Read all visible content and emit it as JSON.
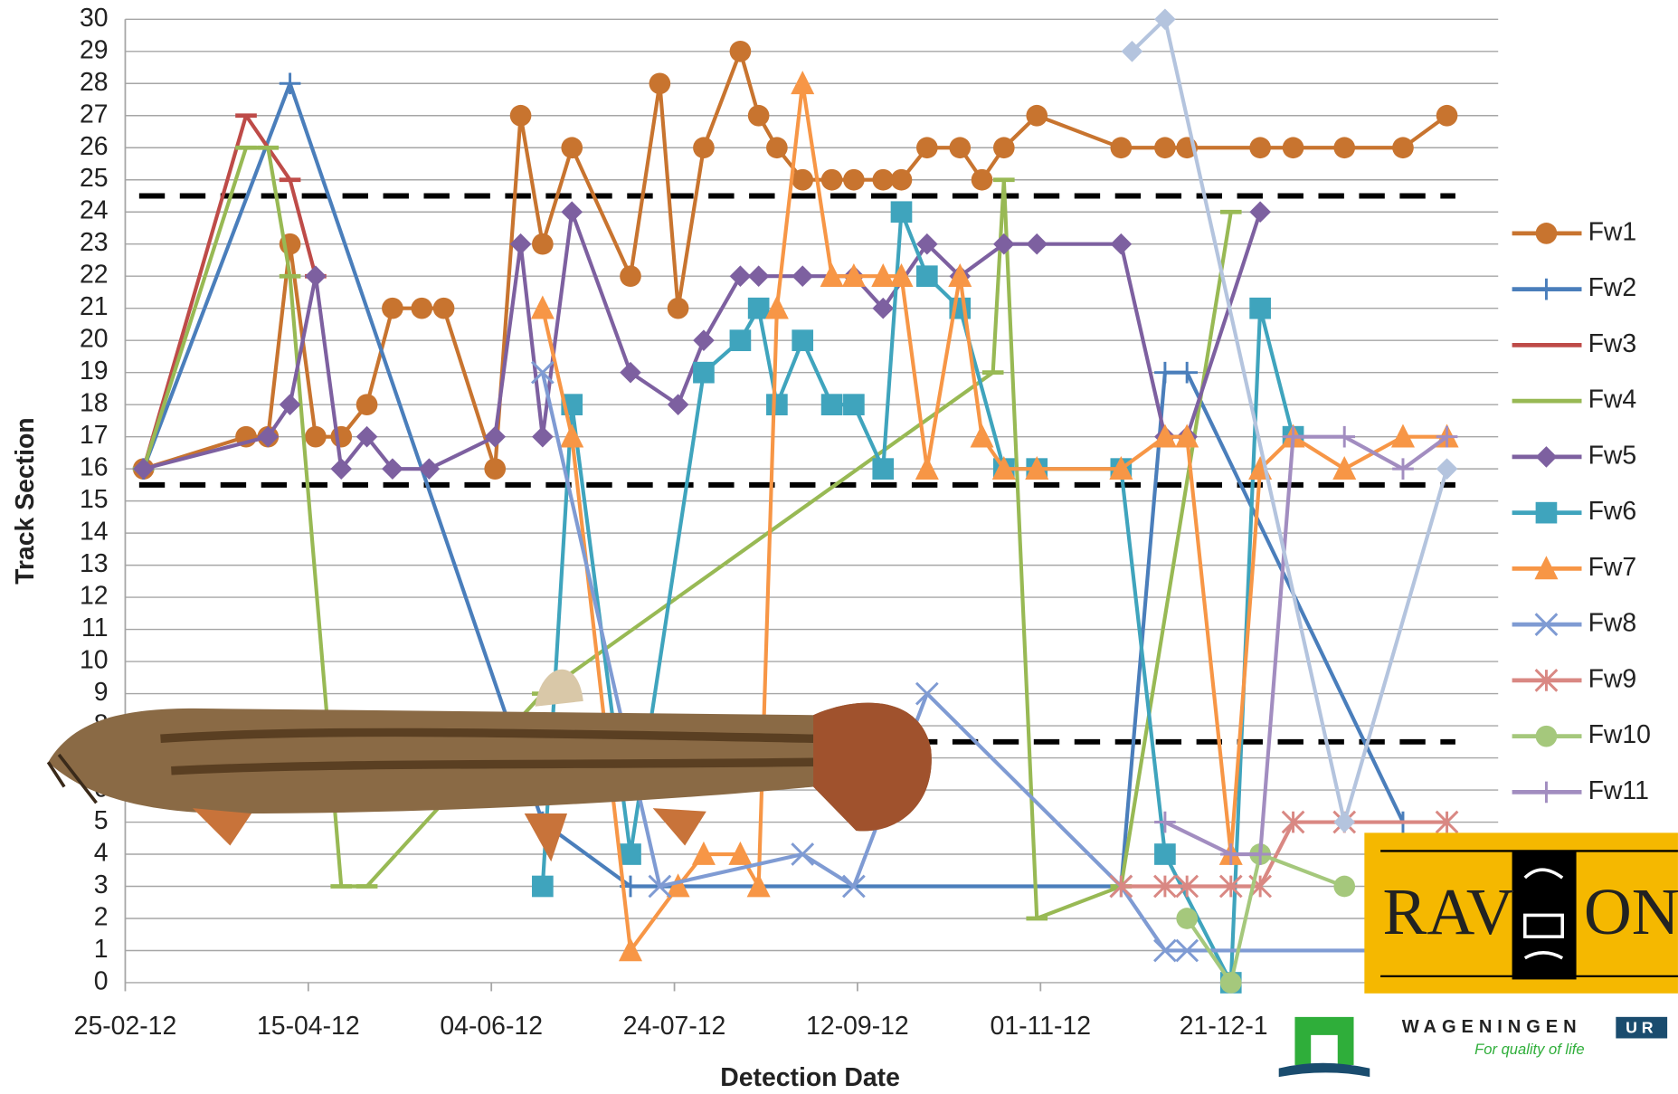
{
  "chart_data": {
    "type": "line",
    "x_label": "Detection Date",
    "y_label": "Track Section",
    "xlim": [
      "2012-02-25",
      "2013-03-06"
    ],
    "ylim": [
      0,
      30
    ],
    "xticks": [
      {
        "value": "2012-02-25",
        "label": "25-02-12"
      },
      {
        "value": "2012-04-15",
        "label": "15-04-12"
      },
      {
        "value": "2012-06-04",
        "label": "04-06-12"
      },
      {
        "value": "2012-07-24",
        "label": "24-07-12"
      },
      {
        "value": "2012-09-12",
        "label": "12-09-12"
      },
      {
        "value": "2012-11-01",
        "label": "01-11-12"
      },
      {
        "value": "2012-12-21",
        "label": "21-12-1"
      }
    ],
    "yticks": [
      0,
      1,
      2,
      3,
      4,
      5,
      6,
      7,
      8,
      9,
      10,
      11,
      12,
      13,
      14,
      15,
      16,
      17,
      18,
      19,
      20,
      21,
      22,
      23,
      24,
      25,
      26,
      27,
      28,
      29,
      30
    ],
    "grid": true,
    "reference_lines": [
      24.5,
      15.5,
      7.5
    ],
    "legend": "right",
    "series": [
      {
        "name": "Fw1",
        "color": "#c8742f",
        "marker": "circle",
        "x": [
          "2012-03-01",
          "2012-03-29",
          "2012-04-04",
          "2012-04-10",
          "2012-04-17",
          "2012-04-24",
          "2012-05-01",
          "2012-05-08",
          "2012-05-16",
          "2012-05-22",
          "2012-06-05",
          "2012-06-12",
          "2012-06-18",
          "2012-06-26",
          "2012-07-12",
          "2012-07-20",
          "2012-07-25",
          "2012-08-01",
          "2012-08-11",
          "2012-08-16",
          "2012-08-21",
          "2012-08-28",
          "2012-09-05",
          "2012-09-11",
          "2012-09-19",
          "2012-09-24",
          "2012-10-01",
          "2012-10-10",
          "2012-10-16",
          "2012-10-22",
          "2012-10-31",
          "2012-11-23",
          "2012-12-05",
          "2012-12-11",
          "2012-12-31",
          "2013-01-09",
          "2013-01-23",
          "2013-02-08",
          "2013-02-20"
        ],
        "values": [
          16,
          17,
          17,
          23,
          17,
          17,
          18,
          21,
          21,
          21,
          16,
          27,
          23,
          26,
          22,
          28,
          21,
          26,
          29,
          27,
          26,
          25,
          25,
          25,
          25,
          25,
          26,
          26,
          25,
          26,
          27,
          26,
          26,
          26,
          26,
          26,
          26,
          26,
          27
        ]
      },
      {
        "name": "Fw2",
        "color": "#4a7ebb",
        "marker": "plus",
        "x": [
          "2012-03-01",
          "2012-04-10",
          "2012-06-18",
          "2012-07-12",
          "2012-11-23",
          "2012-12-05",
          "2012-12-11",
          "2013-02-08"
        ],
        "values": [
          16,
          28,
          5,
          3,
          3,
          19,
          19,
          5
        ]
      },
      {
        "name": "Fw3",
        "color": "#be4b48",
        "marker": "dash",
        "x": [
          "2012-03-01",
          "2012-03-29",
          "2012-04-10",
          "2012-04-17"
        ],
        "values": [
          16,
          27,
          25,
          22
        ]
      },
      {
        "name": "Fw4",
        "color": "#98b954",
        "marker": "dash",
        "x": [
          "2012-03-01",
          "2012-03-29",
          "2012-04-04",
          "2012-04-10",
          "2012-04-24",
          "2012-05-01",
          "2012-06-18",
          "2012-10-19",
          "2012-10-22",
          "2012-10-31",
          "2012-11-23",
          "2012-12-23"
        ],
        "values": [
          16,
          26,
          26,
          22,
          3,
          3,
          9,
          19,
          25,
          2,
          3,
          24
        ]
      },
      {
        "name": "Fw5",
        "color": "#7d60a0",
        "marker": "diamond",
        "x": [
          "2012-03-01",
          "2012-04-04",
          "2012-04-10",
          "2012-04-17",
          "2012-04-24",
          "2012-05-01",
          "2012-05-08",
          "2012-05-18",
          "2012-06-05",
          "2012-06-12",
          "2012-06-18",
          "2012-06-26",
          "2012-07-12",
          "2012-07-25",
          "2012-08-01",
          "2012-08-11",
          "2012-08-16",
          "2012-08-28",
          "2012-09-11",
          "2012-09-19",
          "2012-10-01",
          "2012-10-10",
          "2012-10-22",
          "2012-10-31",
          "2012-11-23",
          "2012-12-05",
          "2012-12-11",
          "2012-12-31"
        ],
        "values": [
          16,
          17,
          18,
          22,
          16,
          17,
          16,
          16,
          17,
          23,
          17,
          24,
          19,
          18,
          20,
          22,
          22,
          22,
          22,
          21,
          23,
          22,
          23,
          23,
          23,
          17,
          17,
          24
        ]
      },
      {
        "name": "Fw6",
        "color": "#3fa4bd",
        "marker": "square",
        "x": [
          "2012-06-18",
          "2012-06-26",
          "2012-07-12",
          "2012-08-01",
          "2012-08-11",
          "2012-08-16",
          "2012-08-21",
          "2012-08-28",
          "2012-09-05",
          "2012-09-11",
          "2012-09-19",
          "2012-09-24",
          "2012-10-01",
          "2012-10-10",
          "2012-10-22",
          "2012-10-31",
          "2012-11-23",
          "2012-12-05",
          "2012-12-23",
          "2012-12-31",
          "2013-01-09"
        ],
        "values": [
          3,
          18,
          4,
          19,
          20,
          21,
          18,
          20,
          18,
          18,
          16,
          24,
          22,
          21,
          16,
          16,
          16,
          4,
          0,
          21,
          17
        ]
      },
      {
        "name": "Fw7",
        "color": "#f79646",
        "marker": "triangle",
        "x": [
          "2012-06-18",
          "2012-06-26",
          "2012-07-12",
          "2012-07-25",
          "2012-08-01",
          "2012-08-11",
          "2012-08-16",
          "2012-08-21",
          "2012-08-28",
          "2012-09-05",
          "2012-09-11",
          "2012-09-19",
          "2012-09-24",
          "2012-10-01",
          "2012-10-10",
          "2012-10-16",
          "2012-10-22",
          "2012-10-31",
          "2012-11-23",
          "2012-12-05",
          "2012-12-11",
          "2012-12-23",
          "2012-12-31",
          "2013-01-09",
          "2013-01-23",
          "2013-02-08",
          "2013-02-20"
        ],
        "values": [
          21,
          17,
          1,
          3,
          4,
          4,
          3,
          21,
          28,
          22,
          22,
          22,
          22,
          16,
          22,
          17,
          16,
          16,
          16,
          17,
          17,
          4,
          16,
          17,
          16,
          17,
          17
        ]
      },
      {
        "name": "Fw8",
        "color": "#7f9bd3",
        "marker": "x",
        "x": [
          "2012-06-18",
          "2012-07-20",
          "2012-08-28",
          "2012-09-11",
          "2012-10-01",
          "2012-11-23",
          "2012-12-05",
          "2012-12-11",
          "2013-02-08"
        ],
        "values": [
          19,
          3,
          4,
          3,
          9,
          3,
          1,
          1,
          1
        ]
      },
      {
        "name": "Fw9",
        "color": "#d98883",
        "marker": "star",
        "x": [
          "2012-11-23",
          "2012-12-05",
          "2012-12-11",
          "2012-12-23",
          "2012-12-31",
          "2013-01-09",
          "2013-01-23",
          "2013-02-20"
        ],
        "values": [
          3,
          3,
          3,
          3,
          3,
          5,
          5,
          5
        ]
      },
      {
        "name": "Fw10",
        "color": "#a5c87c",
        "marker": "circle",
        "x": [
          "2012-12-11",
          "2012-12-23",
          "2012-12-31",
          "2013-01-23"
        ],
        "values": [
          2,
          0,
          4,
          3
        ]
      },
      {
        "name": "Fw11",
        "color": "#a28dc0",
        "marker": "plus",
        "x": [
          "2012-12-05",
          "2012-12-23",
          "2012-12-31",
          "2013-01-09",
          "2013-01-23",
          "2013-02-08",
          "2013-02-20"
        ],
        "values": [
          5,
          4,
          4,
          17,
          17,
          16,
          17
        ]
      },
      {
        "color": "#b4c4de",
        "marker": "diamond",
        "x": [
          "2012-11-26",
          "2012-12-05",
          "2013-01-23",
          "2013-02-20"
        ],
        "values": [
          29,
          30,
          5,
          16
        ]
      }
    ]
  },
  "logos": {
    "rav_left": "RAV",
    "rav_right": "ON",
    "wageningen": "WAGENINGEN",
    "wageningen_ur": "UR",
    "wageningen_tagline": "For quality of life"
  }
}
